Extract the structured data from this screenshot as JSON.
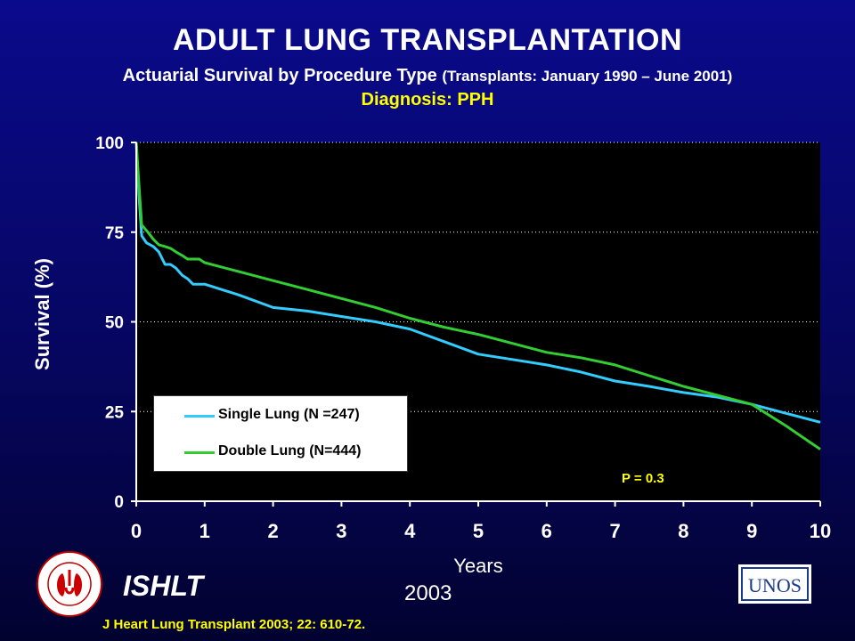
{
  "header": {
    "title": "ADULT LUNG TRANSPLANTATION",
    "subtitle_main": "Actuarial Survival by Procedure Type",
    "subtitle_dates": "(Transplants: January 1990 – June 2001)",
    "diagnosis": "Diagnosis: PPH"
  },
  "chart_data": {
    "type": "line",
    "title": "ADULT LUNG TRANSPLANTATION",
    "xlabel": "Years",
    "ylabel": "Survival (%)",
    "xlim": [
      0,
      10
    ],
    "ylim": [
      0,
      100
    ],
    "x_ticks": [
      0,
      1,
      2,
      3,
      4,
      5,
      6,
      7,
      8,
      9,
      10
    ],
    "y_ticks": [
      0,
      25,
      50,
      75,
      100
    ],
    "grid": "horizontal dotted",
    "legend_position": "bottom-left",
    "annotation": "P = 0.3",
    "series": [
      {
        "name": "Single Lung  (N =247)",
        "color": "#33ccff",
        "points": [
          [
            0,
            100
          ],
          [
            0.04,
            85
          ],
          [
            0.08,
            74
          ],
          [
            0.15,
            72
          ],
          [
            0.25,
            71
          ],
          [
            0.33,
            69.5
          ],
          [
            0.42,
            66
          ],
          [
            0.5,
            66
          ],
          [
            0.58,
            65
          ],
          [
            0.67,
            63
          ],
          [
            0.75,
            62
          ],
          [
            0.83,
            60.5
          ],
          [
            0.92,
            60.5
          ],
          [
            1,
            60.5
          ],
          [
            1.5,
            57.5
          ],
          [
            2,
            54
          ],
          [
            2.5,
            53
          ],
          [
            3,
            51.5
          ],
          [
            3.5,
            50
          ],
          [
            4,
            48
          ],
          [
            4.5,
            44.5
          ],
          [
            5,
            41
          ],
          [
            5.5,
            39.5
          ],
          [
            6,
            38
          ],
          [
            6.5,
            36
          ],
          [
            7,
            33.5
          ],
          [
            7.5,
            32
          ],
          [
            8,
            30.3
          ],
          [
            8.5,
            29
          ],
          [
            9,
            27
          ],
          [
            9.5,
            24.5
          ],
          [
            10,
            22
          ]
        ]
      },
      {
        "name": "Double Lung (N=444)",
        "color": "#33cc33",
        "points": [
          [
            0,
            100
          ],
          [
            0.04,
            88
          ],
          [
            0.08,
            77
          ],
          [
            0.17,
            75
          ],
          [
            0.25,
            73
          ],
          [
            0.33,
            71.5
          ],
          [
            0.42,
            71
          ],
          [
            0.5,
            70.5
          ],
          [
            0.58,
            69.5
          ],
          [
            0.67,
            68.5
          ],
          [
            0.75,
            67.5
          ],
          [
            0.83,
            67.5
          ],
          [
            0.92,
            67.5
          ],
          [
            1,
            66.5
          ],
          [
            1.5,
            64
          ],
          [
            2,
            61.5
          ],
          [
            2.5,
            59
          ],
          [
            3,
            56.5
          ],
          [
            3.5,
            54
          ],
          [
            4,
            51
          ],
          [
            4.5,
            48.5
          ],
          [
            5,
            46.5
          ],
          [
            5.5,
            44
          ],
          [
            6,
            41.5
          ],
          [
            6.5,
            40
          ],
          [
            7,
            38
          ],
          [
            7.5,
            35
          ],
          [
            8,
            32
          ],
          [
            8.5,
            29.5
          ],
          [
            9,
            27
          ],
          [
            9.5,
            21
          ],
          [
            10,
            14.5
          ]
        ]
      }
    ]
  },
  "footer": {
    "ishlt": "ISHLT",
    "year": "2003",
    "citation": "J Heart Lung Transplant 2003; 22: 610-72.",
    "seal_text": "INTERNATIONAL SOCIETY FOR HEART & LUNG TRANSPLANTATION",
    "unos_text": "UNOS"
  }
}
